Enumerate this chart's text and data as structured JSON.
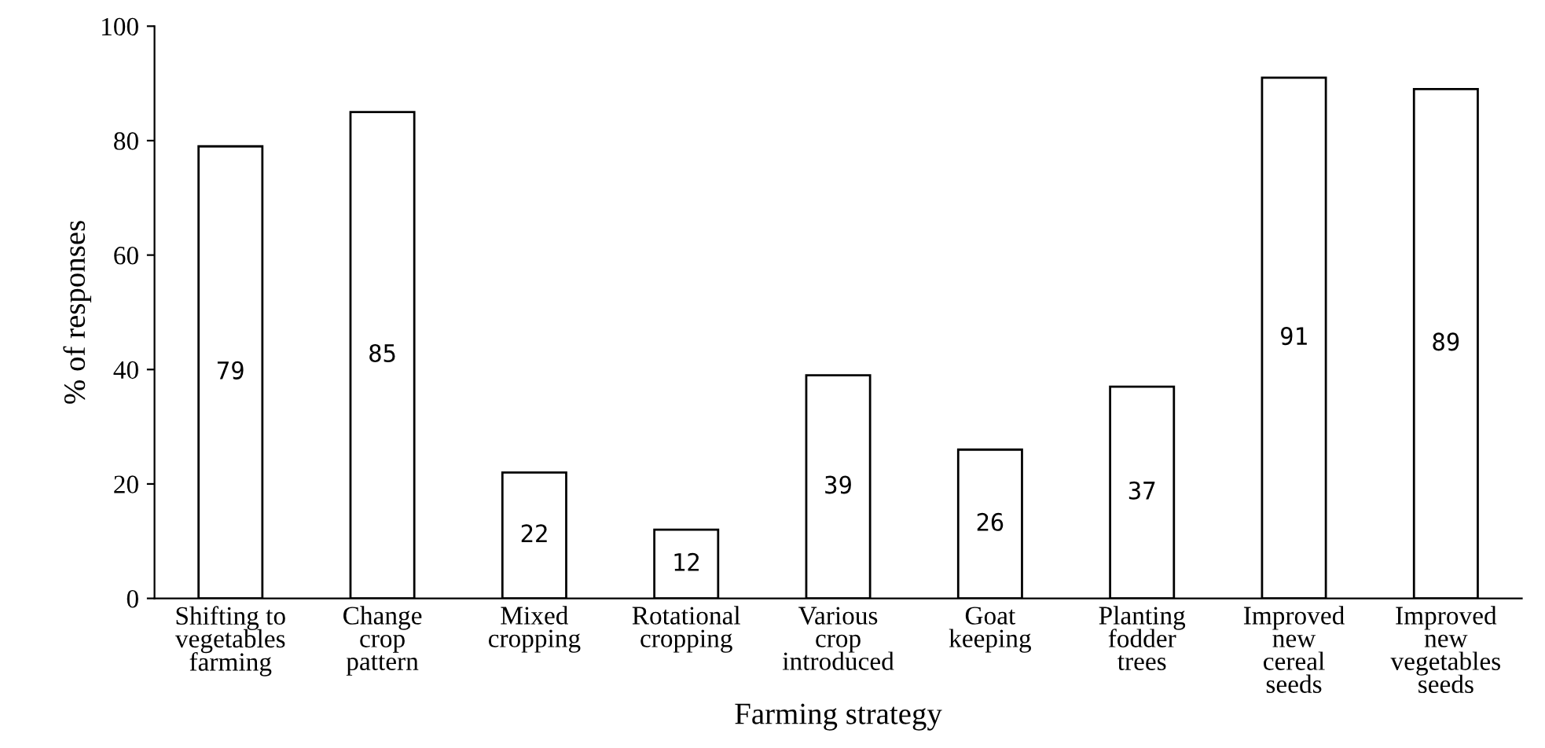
{
  "chart_data": {
    "type": "bar",
    "categories": [
      "Shifting to\nvegetables\nfarming",
      "Change\ncrop\npattern",
      "Mixed\ncropping",
      "Rotational\ncropping",
      "Various\ncrop\nintroduced",
      "Goat\nkeeping",
      "Planting\nfodder\ntrees",
      "Improved\nnew\ncereal\nseeds",
      "Improved\nnew\nvegetables\nseeds"
    ],
    "values": [
      79,
      85,
      22,
      12,
      39,
      26,
      37,
      91,
      89
    ],
    "color": "#ffffff",
    "xlabel": "Farming strategy",
    "ylabel": "% of responses",
    "ylim": [
      0,
      100
    ],
    "yticks": [
      0,
      20,
      40,
      60,
      80,
      100
    ],
    "grid": false,
    "legend": false,
    "data_labels": true
  }
}
